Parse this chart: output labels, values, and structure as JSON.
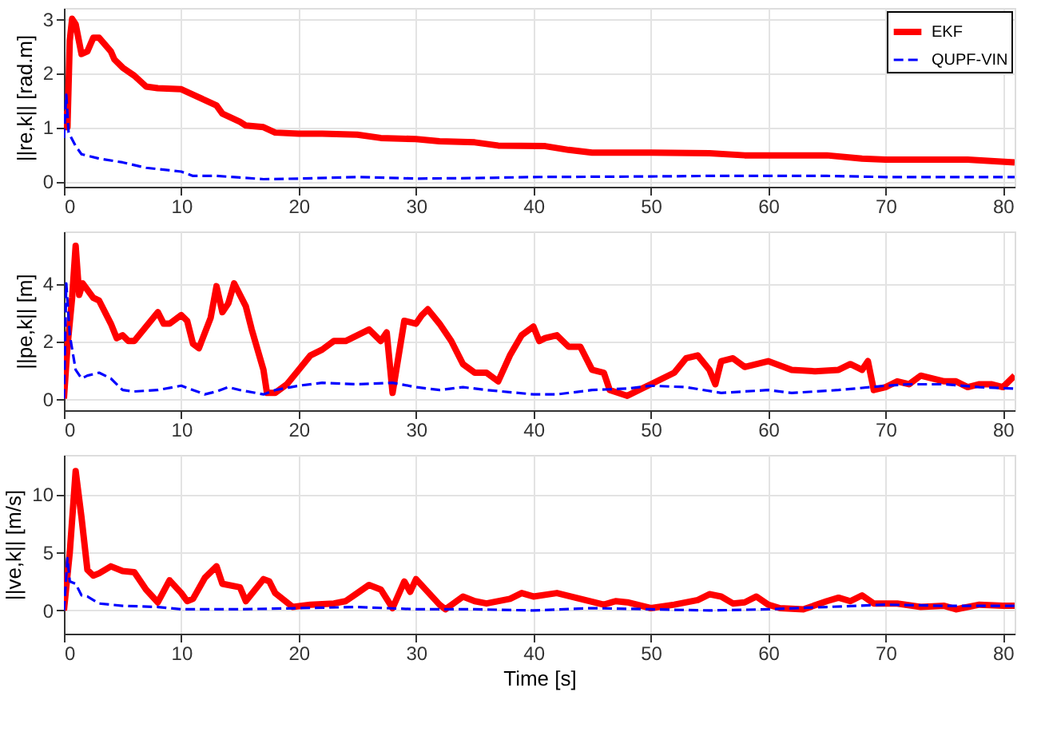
{
  "chart_data": [
    {
      "type": "line",
      "ylabel": "||re,k|| [rad.m]",
      "xlim": [
        0,
        81
      ],
      "xticks": [
        0,
        10,
        20,
        30,
        40,
        50,
        60,
        70,
        80
      ],
      "ylim": [
        -0.1,
        3.2
      ],
      "yticks": [
        0,
        1,
        2,
        3
      ],
      "grid": true,
      "legend": "top right",
      "marker": "none",
      "series": [
        {
          "name": "EKF",
          "color": "#ff0000",
          "line_style": "solid",
          "x": [
            0,
            0.3,
            0.5,
            0.7,
            1.0,
            1.5,
            2.0,
            2.5,
            3,
            4,
            4.3,
            5,
            6,
            7,
            8,
            10,
            11,
            12,
            13,
            13.5,
            15,
            15.5,
            17,
            18,
            20,
            22,
            25,
            27,
            30,
            32,
            35,
            37,
            41,
            43,
            45,
            50,
            55,
            58,
            65,
            68,
            70,
            77,
            81
          ],
          "values": [
            1.3,
            1.0,
            2.6,
            3.0,
            2.9,
            2.35,
            2.4,
            2.65,
            2.65,
            2.4,
            2.25,
            2.1,
            1.95,
            1.75,
            1.72,
            1.7,
            1.6,
            1.5,
            1.4,
            1.25,
            1.1,
            1.03,
            1.0,
            0.9,
            0.88,
            0.88,
            0.86,
            0.8,
            0.78,
            0.74,
            0.72,
            0.66,
            0.65,
            0.58,
            0.53,
            0.53,
            0.52,
            0.48,
            0.48,
            0.42,
            0.4,
            0.4,
            0.35
          ]
        },
        {
          "name": "QUPF-VIN",
          "color": "#0000ff",
          "line_style": "dashed",
          "x": [
            0,
            0.2,
            0.4,
            1,
            1.5,
            3,
            5,
            7,
            10,
            11,
            13,
            15,
            17,
            20,
            25,
            30,
            35,
            40,
            50,
            55,
            60,
            65,
            70,
            81
          ],
          "values": [
            0.8,
            1.6,
            0.9,
            0.65,
            0.5,
            0.42,
            0.35,
            0.25,
            0.18,
            0.1,
            0.1,
            0.07,
            0.04,
            0.05,
            0.08,
            0.05,
            0.06,
            0.08,
            0.09,
            0.1,
            0.1,
            0.1,
            0.08,
            0.08
          ]
        }
      ]
    },
    {
      "type": "line",
      "ylabel": "||pe,k|| [m]",
      "xlim": [
        0,
        81
      ],
      "xticks": [
        0,
        10,
        20,
        30,
        40,
        50,
        60,
        70,
        80
      ],
      "ylim": [
        -0.4,
        5.8
      ],
      "yticks": [
        0,
        2,
        4
      ],
      "grid": true,
      "legend": "top right",
      "marker": "none",
      "series": [
        {
          "name": "EKF",
          "color": "#ff0000",
          "line_style": "solid",
          "x": [
            0,
            0.3,
            0.7,
            1.0,
            1.3,
            1.6,
            2.5,
            3,
            4,
            4.5,
            5,
            5.5,
            6,
            7,
            8,
            8.5,
            9,
            10,
            10.5,
            11,
            11.5,
            12.5,
            13,
            13.5,
            14,
            14.5,
            15.5,
            16,
            17,
            17.3,
            18,
            19,
            20,
            21,
            22,
            23,
            24,
            25,
            26,
            27,
            27.5,
            28,
            29,
            30,
            30.5,
            31,
            32,
            33,
            34,
            35,
            36,
            37,
            38,
            39,
            40,
            40.5,
            41,
            42,
            43,
            44,
            45,
            46,
            46.5,
            48,
            49,
            50,
            52,
            53,
            54,
            55,
            55.5,
            56,
            57,
            58,
            60,
            62,
            64,
            66,
            67,
            68,
            68.5,
            69,
            70,
            71,
            72,
            73,
            75,
            76,
            77,
            78,
            79,
            80,
            81
          ],
          "values": [
            0,
            1.8,
            3.5,
            5.3,
            3.6,
            4.0,
            3.5,
            3.4,
            2.6,
            2.1,
            2.2,
            2.0,
            2.0,
            2.5,
            3.0,
            2.6,
            2.6,
            2.9,
            2.7,
            1.9,
            1.75,
            2.8,
            3.9,
            3.0,
            3.3,
            4.0,
            3.2,
            2.4,
            1.0,
            0.2,
            0.2,
            0.5,
            1.0,
            1.5,
            1.7,
            2.0,
            2.0,
            2.2,
            2.4,
            2.0,
            2.3,
            0.2,
            2.7,
            2.6,
            2.9,
            3.1,
            2.6,
            2.0,
            1.2,
            0.9,
            0.9,
            0.6,
            1.5,
            2.2,
            2.5,
            2.0,
            2.1,
            2.2,
            1.8,
            1.8,
            1.0,
            0.9,
            0.3,
            0.1,
            0.3,
            0.5,
            0.9,
            1.4,
            1.5,
            1.0,
            0.5,
            1.3,
            1.4,
            1.1,
            1.3,
            1.0,
            0.95,
            1.0,
            1.2,
            1.0,
            1.3,
            0.3,
            0.4,
            0.6,
            0.5,
            0.8,
            0.6,
            0.6,
            0.4,
            0.5,
            0.5,
            0.4,
            0.8
          ]
        },
        {
          "name": "QUPF-VIN",
          "color": "#0000ff",
          "line_style": "dashed",
          "x": [
            0,
            0.2,
            0.5,
            1,
            1.5,
            2,
            3,
            4,
            5,
            6,
            8,
            10,
            11,
            12,
            13,
            14,
            15,
            17,
            18,
            20,
            22,
            25,
            28,
            30,
            32,
            34,
            36,
            40,
            42,
            45,
            48,
            50,
            53,
            56,
            60,
            62,
            64,
            66,
            70,
            72,
            75,
            78,
            81
          ],
          "values": [
            0,
            4.0,
            2.2,
            1.0,
            0.7,
            0.8,
            0.9,
            0.7,
            0.3,
            0.25,
            0.3,
            0.45,
            0.3,
            0.15,
            0.25,
            0.4,
            0.3,
            0.15,
            0.3,
            0.45,
            0.55,
            0.5,
            0.55,
            0.4,
            0.3,
            0.4,
            0.3,
            0.15,
            0.15,
            0.3,
            0.35,
            0.45,
            0.4,
            0.2,
            0.3,
            0.2,
            0.25,
            0.3,
            0.45,
            0.5,
            0.5,
            0.4,
            0.35
          ]
        }
      ]
    },
    {
      "type": "line",
      "xlabel": "Time [s]",
      "ylabel": "||ve,k|| [m/s]",
      "xlim": [
        0,
        81
      ],
      "xticks": [
        0,
        10,
        20,
        30,
        40,
        50,
        60,
        70,
        80
      ],
      "ylim": [
        -2,
        13.4
      ],
      "yticks": [
        0,
        5,
        10
      ],
      "grid": true,
      "legend": "top right",
      "marker": "none",
      "series": [
        {
          "name": "EKF",
          "color": "#ff0000",
          "line_style": "solid",
          "x": [
            0,
            0.5,
            1,
            1.5,
            2,
            2.5,
            3,
            4,
            5,
            6,
            7,
            8,
            9,
            10,
            10.5,
            11,
            12,
            13,
            13.5,
            15,
            15.5,
            17,
            17.5,
            18,
            19.5,
            21,
            23,
            24,
            25,
            26,
            27,
            28,
            29,
            29.5,
            30,
            31,
            32,
            32.5,
            34,
            35,
            36,
            38,
            39,
            40,
            42,
            44,
            46,
            47,
            48,
            50,
            52,
            54,
            55,
            56,
            57,
            58,
            59,
            60,
            61,
            63,
            65,
            66,
            67,
            68,
            69,
            71,
            73,
            75,
            76,
            78,
            80,
            81
          ],
          "values": [
            0,
            5,
            12,
            8,
            3.5,
            3,
            3.2,
            3.8,
            3.4,
            3.3,
            1.8,
            0.7,
            2.6,
            1.5,
            0.8,
            1.0,
            2.8,
            3.8,
            2.3,
            2.0,
            0.8,
            2.7,
            2.5,
            1.5,
            0.3,
            0.5,
            0.6,
            0.8,
            1.5,
            2.2,
            1.8,
            0.2,
            2.5,
            1.6,
            2.7,
            1.6,
            0.5,
            0.1,
            1.2,
            0.8,
            0.6,
            1.0,
            1.5,
            1.2,
            1.5,
            1.0,
            0.5,
            0.8,
            0.7,
            0.2,
            0.5,
            0.9,
            1.4,
            1.2,
            0.6,
            0.7,
            1.2,
            0.5,
            0.2,
            0.1,
            0.8,
            1.1,
            0.8,
            1.3,
            0.6,
            0.6,
            0.3,
            0.4,
            0.1,
            0.5,
            0.4,
            0.4
          ]
        },
        {
          "name": "QUPF-VIN",
          "color": "#0000ff",
          "line_style": "dashed",
          "x": [
            0,
            0.3,
            0.5,
            1,
            1.5,
            2,
            3,
            5,
            8,
            10,
            15,
            20,
            25,
            30,
            35,
            40,
            45,
            50,
            55,
            60,
            65,
            70,
            75,
            81
          ],
          "values": [
            0,
            4.5,
            2.5,
            2.3,
            1.3,
            1.2,
            0.6,
            0.4,
            0.3,
            0.1,
            0.1,
            0.2,
            0.3,
            0.1,
            0.1,
            0.0,
            0.2,
            0.1,
            0.0,
            0.1,
            0.3,
            0.5,
            0.4,
            0.4
          ]
        }
      ]
    }
  ]
}
